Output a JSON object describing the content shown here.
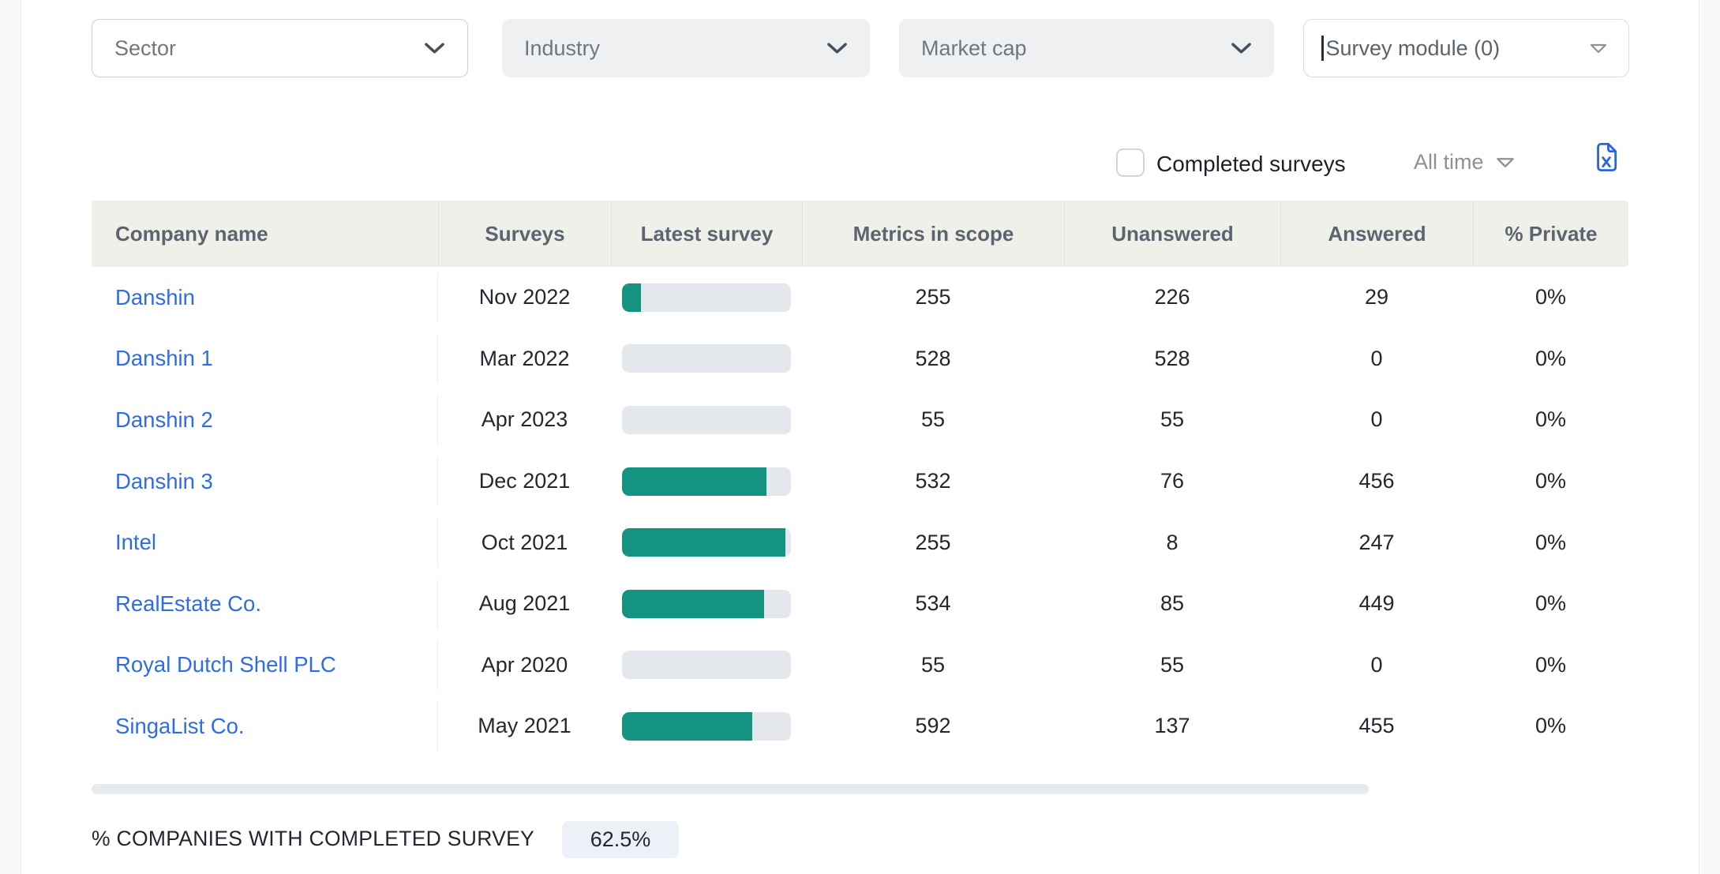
{
  "filters": [
    {
      "label": "Sector",
      "variant": "outline",
      "icon": "chevron-down-icon"
    },
    {
      "label": "Industry",
      "variant": "filled",
      "icon": "chevron-down-icon"
    },
    {
      "label": "Market cap",
      "variant": "filled",
      "icon": "chevron-down-icon"
    },
    {
      "label": "Survey module (0)",
      "variant": "input",
      "icon": "triangle-down-icon"
    }
  ],
  "controls": {
    "completed_surveys": {
      "label": "Completed surveys",
      "checked": false
    },
    "time_filter": {
      "label": "All time",
      "icon": "triangle-down-icon"
    },
    "export": {
      "icon": "excel-export-icon"
    }
  },
  "table": {
    "columns": [
      "Company name",
      "Surveys",
      "Latest survey",
      "Metrics in scope",
      "Unanswered",
      "Answered",
      "% Private"
    ],
    "rows": [
      {
        "company": "Danshin",
        "survey_date": "Nov 2022",
        "progress_pct": 11.4,
        "metrics_in_scope": 255,
        "unanswered": 226,
        "answered": 29,
        "pct_private": "0%"
      },
      {
        "company": "Danshin 1",
        "survey_date": "Mar 2022",
        "progress_pct": 0,
        "metrics_in_scope": 528,
        "unanswered": 528,
        "answered": 0,
        "pct_private": "0%"
      },
      {
        "company": "Danshin 2",
        "survey_date": "Apr 2023",
        "progress_pct": 0,
        "metrics_in_scope": 55,
        "unanswered": 55,
        "answered": 0,
        "pct_private": "0%"
      },
      {
        "company": "Danshin 3",
        "survey_date": "Dec 2021",
        "progress_pct": 85.7,
        "metrics_in_scope": 532,
        "unanswered": 76,
        "answered": 456,
        "pct_private": "0%"
      },
      {
        "company": "Intel",
        "survey_date": "Oct 2021",
        "progress_pct": 96.9,
        "metrics_in_scope": 255,
        "unanswered": 8,
        "answered": 247,
        "pct_private": "0%"
      },
      {
        "company": "RealEstate Co.",
        "survey_date": "Aug 2021",
        "progress_pct": 84.1,
        "metrics_in_scope": 534,
        "unanswered": 85,
        "answered": 449,
        "pct_private": "0%"
      },
      {
        "company": "Royal Dutch Shell PLC",
        "survey_date": "Apr 2020",
        "progress_pct": 0,
        "metrics_in_scope": 55,
        "unanswered": 55,
        "answered": 0,
        "pct_private": "0%"
      },
      {
        "company": "SingaList Co.",
        "survey_date": "May 2021",
        "progress_pct": 76.9,
        "metrics_in_scope": 592,
        "unanswered": 137,
        "answered": 455,
        "pct_private": "0%"
      }
    ]
  },
  "footer": {
    "label": "% COMPANIES WITH COMPLETED SURVEY",
    "value": "62.5%"
  },
  "colors": {
    "accent_teal": "#149480",
    "bar_track": "#e4e7ec",
    "link_blue": "#2f6ce5",
    "header_bg": "#f0f0ea",
    "header_text": "#5c6470",
    "excel_blue": "#2c63e0",
    "muted_gray": "#8b919b",
    "badge_bg": "#edf1f7"
  }
}
